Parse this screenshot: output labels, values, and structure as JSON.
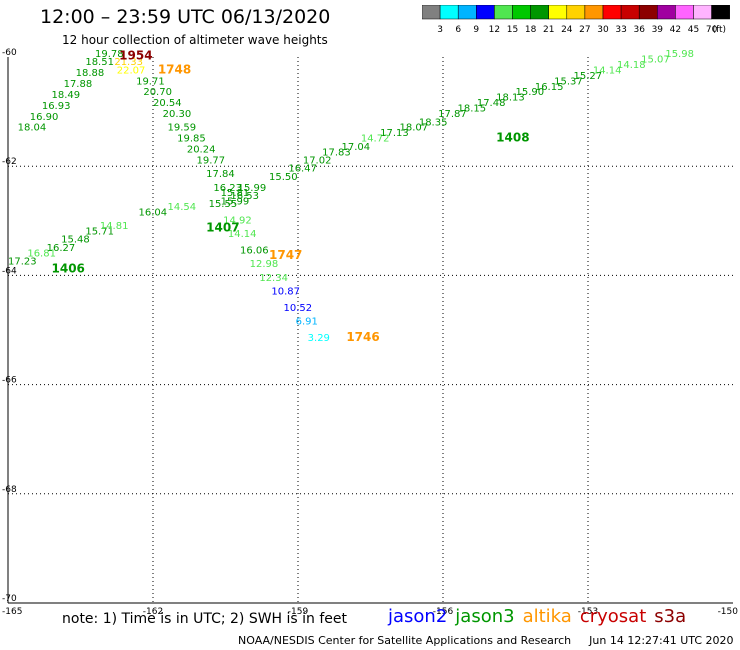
{
  "header": {
    "title": "12:00 – 23:59 UTC 06/13/2020",
    "subtitle": "12 hour collection of altimeter wave heights"
  },
  "colorbar": {
    "ticks": [
      "3",
      "6",
      "9",
      "12",
      "15",
      "18",
      "21",
      "24",
      "27",
      "30",
      "33",
      "36",
      "39",
      "42",
      "45",
      "70"
    ],
    "unit": "(ft)",
    "colors": [
      "#808080",
      "#00ffff",
      "#00b4ff",
      "#0000ff",
      "#50e650",
      "#00c800",
      "#009600",
      "#ffff00",
      "#ffd200",
      "#ff9600",
      "#ff0000",
      "#c80000",
      "#8c0000",
      "#a000a0",
      "#ff64ff",
      "#ffb4ff",
      "#000000"
    ]
  },
  "axes": {
    "lat_labels": [
      "-60",
      "-62",
      "-64",
      "-66",
      "-68",
      "-70"
    ],
    "lon_labels": [
      "-165",
      "-162",
      "-159",
      "-156",
      "-153",
      "-150"
    ]
  },
  "footer": {
    "note": "note: 1) Time is in UTC; 2) SWH is in feet",
    "satellites": [
      {
        "name": "jason2",
        "color": "#0000ff"
      },
      {
        "name": "jason3",
        "color": "#009600"
      },
      {
        "name": "altika",
        "color": "#ff9600"
      },
      {
        "name": "cryosat",
        "color": "#c80000"
      },
      {
        "name": "s3a",
        "color": "#8c0000"
      }
    ],
    "credit": "NOAA/NESDIS Center for Satellite Applications and Research",
    "timestamp": "Jun 14 12:27:41 UTC 2020"
  },
  "chart_data": {
    "type": "scatter",
    "lat_range": [
      -70,
      -60
    ],
    "lon_range": [
      -165,
      -150
    ],
    "passes": [
      {
        "label": "1954",
        "label_color": "#8c0000",
        "label_lon": -162.7,
        "label_lat": -60.05
      },
      {
        "label": "1748",
        "label_color": "#ff9600",
        "label_lon": -161.9,
        "label_lat": -60.3
      },
      {
        "label": "1747",
        "label_color": "#ff9600",
        "label_lon": -159.6,
        "label_lat": -63.7
      },
      {
        "label": "1746",
        "label_color": "#ff9600",
        "label_lon": -158.0,
        "label_lat": -65.2
      },
      {
        "label": "1406",
        "label_color": "#009600",
        "label_lon": -164.1,
        "label_lat": -63.95
      },
      {
        "label": "1407",
        "label_color": "#009600",
        "label_lon": -160.9,
        "label_lat": -63.2
      },
      {
        "label": "1408",
        "label_color": "#009600",
        "label_lon": -154.9,
        "label_lat": -61.55
      }
    ],
    "points": [
      {
        "lon": -163.2,
        "lat": -60.0,
        "v": "19.78",
        "c": "#009600"
      },
      {
        "lon": -163.4,
        "lat": -60.15,
        "v": "18.51",
        "c": "#009600"
      },
      {
        "lon": -163.6,
        "lat": -60.35,
        "v": "18.88",
        "c": "#009600"
      },
      {
        "lon": -163.85,
        "lat": -60.55,
        "v": "17.88",
        "c": "#009600"
      },
      {
        "lon": -164.1,
        "lat": -60.75,
        "v": "18.49",
        "c": "#009600"
      },
      {
        "lon": -164.3,
        "lat": -60.95,
        "v": "16.93",
        "c": "#009600"
      },
      {
        "lon": -164.55,
        "lat": -61.15,
        "v": "16.90",
        "c": "#009600"
      },
      {
        "lon": -164.8,
        "lat": -61.35,
        "v": "18.04",
        "c": "#009600"
      },
      {
        "lon": -162.8,
        "lat": -60.15,
        "v": "21.33",
        "c": "#ffd200"
      },
      {
        "lon": -162.75,
        "lat": -60.3,
        "v": "22.07",
        "c": "#ffff00"
      },
      {
        "lon": -162.35,
        "lat": -60.5,
        "v": "19.71",
        "c": "#009600"
      },
      {
        "lon": -162.2,
        "lat": -60.7,
        "v": "20.70",
        "c": "#009600"
      },
      {
        "lon": -162.0,
        "lat": -60.9,
        "v": "20.54",
        "c": "#009600"
      },
      {
        "lon": -161.8,
        "lat": -61.1,
        "v": "20.30",
        "c": "#009600"
      },
      {
        "lon": -161.7,
        "lat": -61.35,
        "v": "19.59",
        "c": "#009600"
      },
      {
        "lon": -161.5,
        "lat": -61.55,
        "v": "19.85",
        "c": "#009600"
      },
      {
        "lon": -161.3,
        "lat": -61.75,
        "v": "20.24",
        "c": "#009600"
      },
      {
        "lon": -161.1,
        "lat": -61.95,
        "v": "19.77",
        "c": "#009600"
      },
      {
        "lon": -160.9,
        "lat": -62.2,
        "v": "17.84",
        "c": "#009600"
      },
      {
        "lon": -160.75,
        "lat": -62.45,
        "v": "16.23",
        "c": "#009600"
      },
      {
        "lon": -160.85,
        "lat": -62.75,
        "v": "15.55",
        "c": "#009600"
      },
      {
        "lon": -160.6,
        "lat": -62.7,
        "v": "15.99",
        "c": "#009600"
      },
      {
        "lon": -160.6,
        "lat": -62.55,
        "v": "15.81",
        "c": "#009600"
      },
      {
        "lon": -160.55,
        "lat": -63.05,
        "v": "14.92",
        "c": "#50e650"
      },
      {
        "lon": -160.45,
        "lat": -63.3,
        "v": "14.14",
        "c": "#50e650"
      },
      {
        "lon": -160.2,
        "lat": -63.6,
        "v": "16.06",
        "c": "#009600"
      },
      {
        "lon": -160.0,
        "lat": -63.85,
        "v": "12.98",
        "c": "#50e650"
      },
      {
        "lon": -159.8,
        "lat": -64.1,
        "v": "12.34",
        "c": "#50e650"
      },
      {
        "lon": -159.55,
        "lat": -64.35,
        "v": "10.87",
        "c": "#0000ff"
      },
      {
        "lon": -159.3,
        "lat": -64.65,
        "v": "10.52",
        "c": "#0000ff"
      },
      {
        "lon": -159.05,
        "lat": -64.9,
        "v": "6.91",
        "c": "#00b4ff"
      },
      {
        "lon": -158.8,
        "lat": -65.2,
        "v": "3.29",
        "c": "#00ffff"
      },
      {
        "lon": -165.0,
        "lat": -63.8,
        "v": "17.23",
        "c": "#009600"
      },
      {
        "lon": -164.6,
        "lat": -63.65,
        "v": "16.81",
        "c": "#50e650"
      },
      {
        "lon": -164.2,
        "lat": -63.55,
        "v": "16.27",
        "c": "#009600"
      },
      {
        "lon": -163.9,
        "lat": -63.4,
        "v": "15.48",
        "c": "#009600"
      },
      {
        "lon": -163.4,
        "lat": -63.25,
        "v": "15.71",
        "c": "#009600"
      },
      {
        "lon": -163.1,
        "lat": -63.15,
        "v": "14.81",
        "c": "#50e650"
      },
      {
        "lon": -162.3,
        "lat": -62.9,
        "v": "16.04",
        "c": "#009600"
      },
      {
        "lon": -161.7,
        "lat": -62.8,
        "v": "14.54",
        "c": "#50e650"
      },
      {
        "lon": -160.4,
        "lat": -62.6,
        "v": "16.53",
        "c": "#009600"
      },
      {
        "lon": -160.25,
        "lat": -62.45,
        "v": "15.99",
        "c": "#009600"
      },
      {
        "lon": -159.6,
        "lat": -62.25,
        "v": "15.50",
        "c": "#009600"
      },
      {
        "lon": -159.2,
        "lat": -62.1,
        "v": "16.47",
        "c": "#009600"
      },
      {
        "lon": -158.9,
        "lat": -61.95,
        "v": "17.02",
        "c": "#009600"
      },
      {
        "lon": -158.5,
        "lat": -61.8,
        "v": "17.83",
        "c": "#009600"
      },
      {
        "lon": -158.1,
        "lat": -61.7,
        "v": "17.04",
        "c": "#009600"
      },
      {
        "lon": -157.7,
        "lat": -61.55,
        "v": "14.72",
        "c": "#50e650"
      },
      {
        "lon": -157.3,
        "lat": -61.45,
        "v": "17.13",
        "c": "#009600"
      },
      {
        "lon": -156.9,
        "lat": -61.35,
        "v": "18.07",
        "c": "#009600"
      },
      {
        "lon": -156.5,
        "lat": -61.25,
        "v": "18.35",
        "c": "#009600"
      },
      {
        "lon": -156.1,
        "lat": -61.1,
        "v": "17.87",
        "c": "#009600"
      },
      {
        "lon": -155.7,
        "lat": -61.0,
        "v": "18.15",
        "c": "#009600"
      },
      {
        "lon": -155.3,
        "lat": -60.9,
        "v": "17.48",
        "c": "#009600"
      },
      {
        "lon": -154.9,
        "lat": -60.8,
        "v": "18.13",
        "c": "#009600"
      },
      {
        "lon": -154.5,
        "lat": -60.7,
        "v": "15.90",
        "c": "#009600"
      },
      {
        "lon": -154.1,
        "lat": -60.6,
        "v": "16.15",
        "c": "#009600"
      },
      {
        "lon": -153.7,
        "lat": -60.5,
        "v": "15.37",
        "c": "#009600"
      },
      {
        "lon": -153.3,
        "lat": -60.4,
        "v": "15.27",
        "c": "#009600"
      },
      {
        "lon": -152.9,
        "lat": -60.3,
        "v": "14.14",
        "c": "#50e650"
      },
      {
        "lon": -152.4,
        "lat": -60.2,
        "v": "14.18",
        "c": "#50e650"
      },
      {
        "lon": -151.9,
        "lat": -60.1,
        "v": "15.07",
        "c": "#50e650"
      },
      {
        "lon": -151.4,
        "lat": -60.0,
        "v": "15.98",
        "c": "#50e650"
      }
    ]
  }
}
